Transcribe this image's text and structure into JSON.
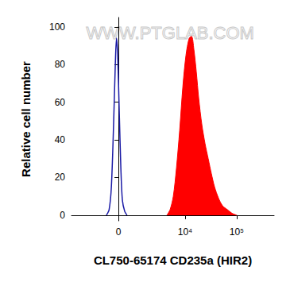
{
  "chart_data": {
    "type": "line",
    "x_label": "CL750-65174 CD235a (HIR2)",
    "y_label": "Relative cell number",
    "annotations": [
      "WWW.PTGLAB.COM"
    ],
    "xlim": [
      -4100,
      530000
    ],
    "xticks": [
      0,
      {
        "value": 10000,
        "label": "10⁴"
      },
      {
        "value": 100000,
        "label": "10⁵"
      }
    ],
    "ylim": [
      -3,
      105
    ],
    "yticks": [
      0,
      20,
      40,
      60,
      80,
      100
    ],
    "grid": false,
    "series": [
      {
        "type": "line",
        "color": "#1a1aa6",
        "x": [
          -580,
          -440,
          -330,
          -220,
          -145,
          -90,
          -36,
          36,
          110,
          180,
          290,
          400
        ],
        "values": [
          0,
          3,
          15,
          50,
          80,
          94,
          85,
          55,
          25,
          8,
          2,
          0
        ]
      },
      {
        "type": "area",
        "color": "#ff0000",
        "x": [
          4390,
          5080,
          5870,
          6770,
          7820,
          9010,
          10390,
          11990,
          13340,
          14810,
          16500,
          18370,
          21140,
          24360,
          28060,
          32350,
          37270,
          44530,
          53200,
          65700,
          81300,
          100500
        ],
        "values": [
          0,
          3,
          10,
          25,
          45,
          68,
          85,
          94,
          95,
          88,
          76,
          62,
          48,
          38,
          30,
          22,
          15,
          9,
          5,
          3,
          1,
          0
        ]
      }
    ]
  }
}
